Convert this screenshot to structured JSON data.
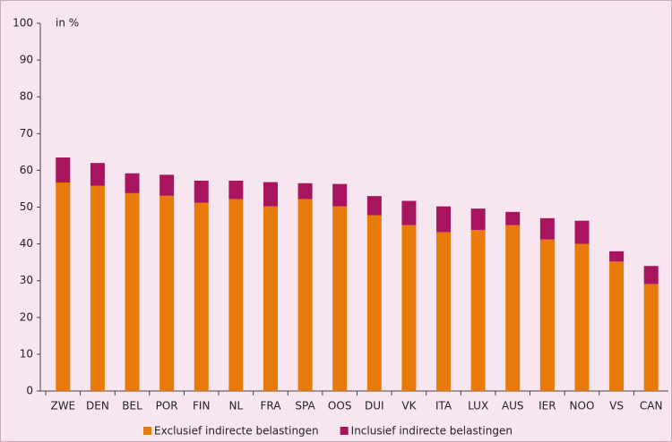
{
  "chart_data": {
    "type": "stacked-bar",
    "annotation": "in %",
    "categories": [
      "ZWE",
      "DEN",
      "BEL",
      "POR",
      "FIN",
      "NL",
      "FRA",
      "SPA",
      "OOS",
      "DUI",
      "VK",
      "ITA",
      "LUX",
      "AUS",
      "IER",
      "NOO",
      "VS",
      "CAN"
    ],
    "series": [
      {
        "name": "Exclusief indirecte belastingen",
        "color": "#e8790b",
        "values": [
          56.7,
          55.8,
          53.8,
          53.1,
          51.2,
          52.2,
          50.2,
          52.2,
          50.2,
          47.8,
          45.1,
          43.2,
          43.8,
          45.1,
          41.2,
          40.0,
          35.2,
          29.1
        ]
      },
      {
        "name": "Inclusief indirecte belastingen",
        "color": "#a8155e",
        "values": [
          6.8,
          6.2,
          5.4,
          5.7,
          6.0,
          5.0,
          6.6,
          4.3,
          6.1,
          5.2,
          6.6,
          7.0,
          5.8,
          3.6,
          5.8,
          6.3,
          2.8,
          4.9
        ]
      }
    ],
    "ylim": [
      0,
      100
    ],
    "yticks": [
      0,
      10,
      20,
      30,
      40,
      50,
      60,
      70,
      80,
      90,
      100
    ],
    "grid": false
  }
}
